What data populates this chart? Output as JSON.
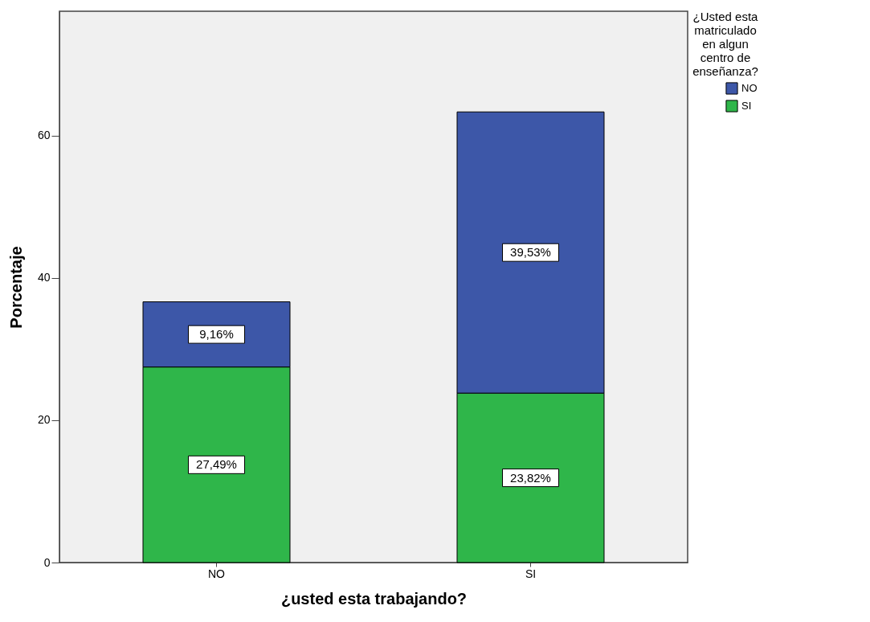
{
  "chart_data": {
    "type": "bar",
    "stacked": true,
    "xlabel": "¿usted esta trabajando?",
    "ylabel": "Porcentaje",
    "legend_title": "¿Usted esta matriculado en algun centro de enseñanza?",
    "legend": "top right",
    "grid": false,
    "categories": [
      "NO",
      "SI"
    ],
    "ylim": [
      0,
      77.5
    ],
    "yticks": [
      0,
      20,
      40,
      60
    ],
    "series": [
      {
        "name": "SI",
        "color": "#2fb64a",
        "values": [
          27.49,
          23.82
        ],
        "value_labels": [
          "27,49%",
          "23,82%"
        ]
      },
      {
        "name": "NO",
        "color": "#3d57a8",
        "values": [
          9.16,
          39.53
        ],
        "value_labels": [
          "9,16%",
          "39,53%"
        ]
      }
    ]
  }
}
